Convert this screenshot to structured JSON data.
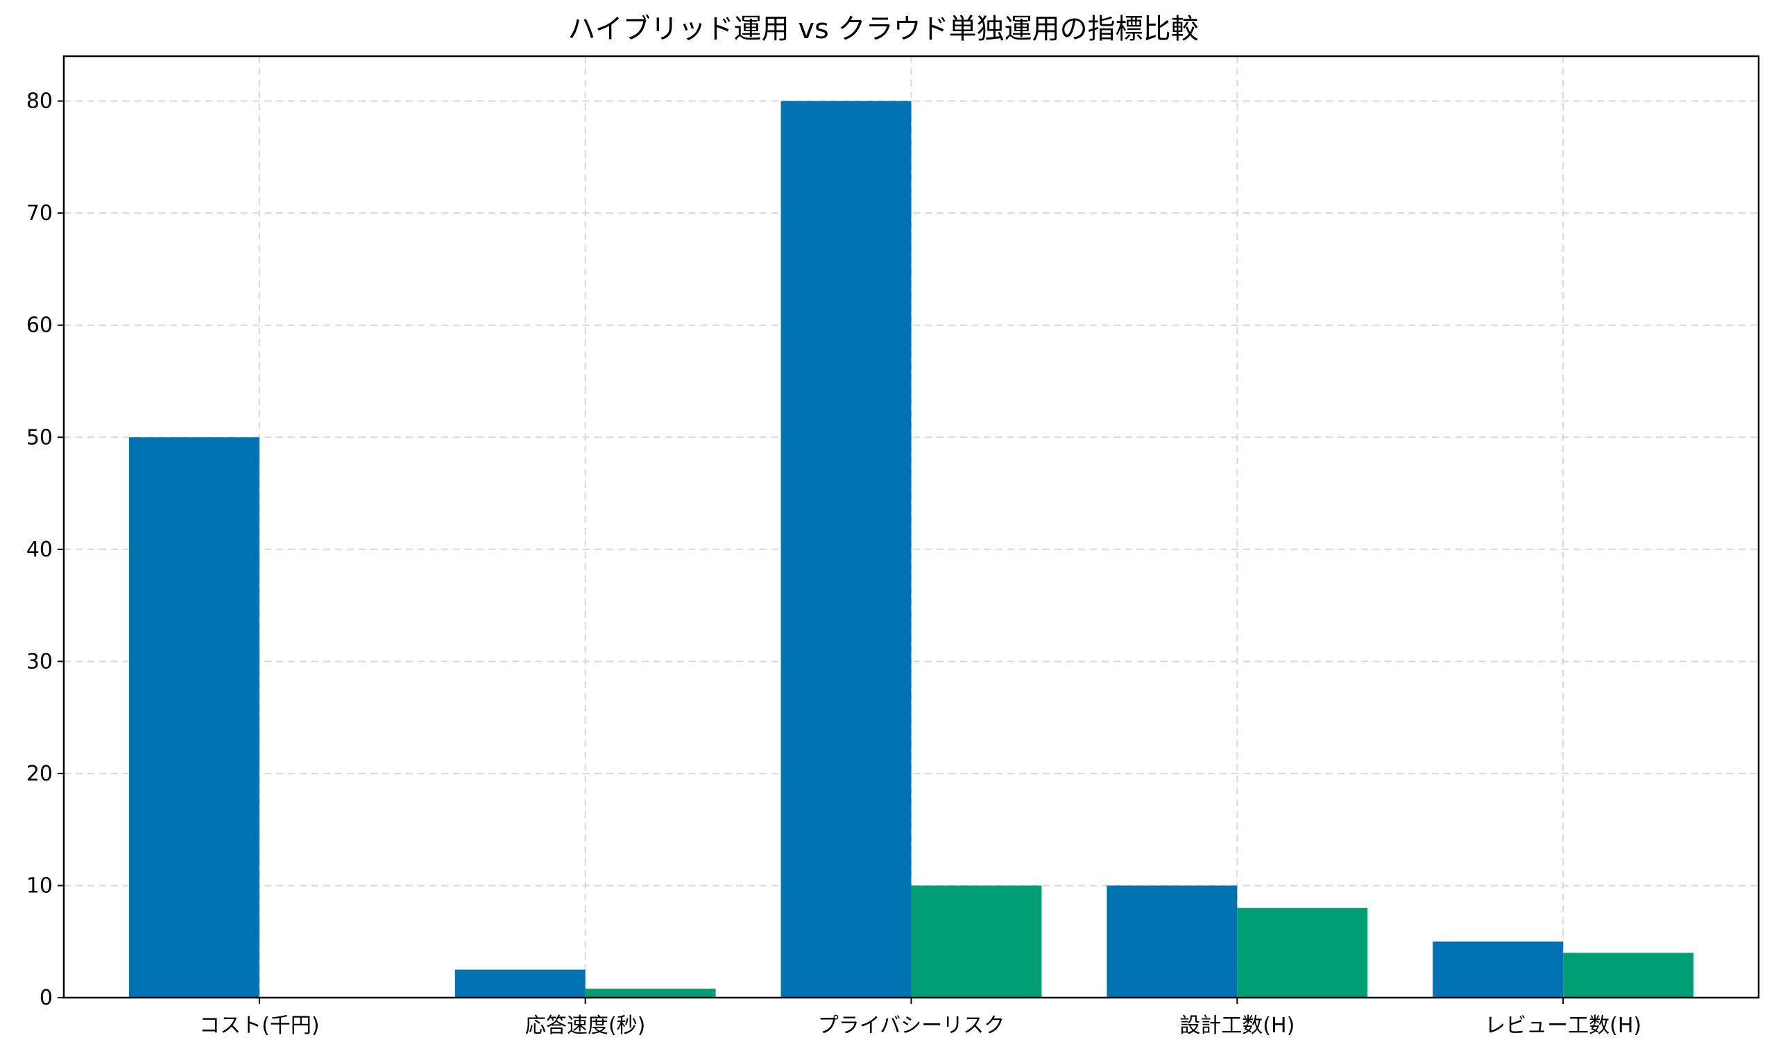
{
  "chart_data": {
    "type": "bar",
    "title": "ハイブリッド運用 vs クラウド単独運用の指標比較",
    "xlabel": "",
    "ylabel": "",
    "categories": [
      "コスト(千円)",
      "応答速度(秒)",
      "プライバシーリスク",
      "設計工数(H)",
      "レビュー工数(H)"
    ],
    "series": [
      {
        "values": [
          50,
          2.5,
          80,
          10,
          5
        ],
        "color": "#0072b2"
      },
      {
        "values": [
          0,
          0.8,
          10,
          8,
          4
        ],
        "color": "#009e73"
      }
    ],
    "ylim": [
      0,
      84
    ],
    "yticks": [
      0,
      10,
      20,
      30,
      40,
      50,
      60,
      70,
      80
    ],
    "grid": true,
    "legend": "none"
  }
}
